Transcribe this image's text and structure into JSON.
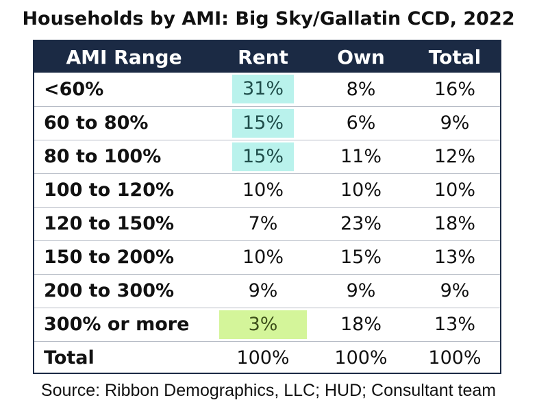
{
  "title": "Households by AMI:  Big Sky/Gallatin CCD, 2022",
  "source": "Source: Ribbon Demographics, LLC; HUD; Consultant team",
  "colors": {
    "header_bg": "#1b2a44",
    "highlight_teal": "#b9f2ec",
    "highlight_green": "#d4f59a"
  },
  "chart_data": {
    "type": "table",
    "columns": [
      "AMI Range",
      "Rent",
      "Own",
      "Total"
    ],
    "rows": [
      {
        "label": "<60%",
        "rent": "31%",
        "own": "8%",
        "total": "16%",
        "rent_highlight": "teal"
      },
      {
        "label": "60 to 80%",
        "rent": "15%",
        "own": "6%",
        "total": "9%",
        "rent_highlight": "teal"
      },
      {
        "label": "80 to 100%",
        "rent": "15%",
        "own": "11%",
        "total": "12%",
        "rent_highlight": "teal"
      },
      {
        "label": "100 to 120%",
        "rent": "10%",
        "own": "10%",
        "total": "10%",
        "rent_highlight": ""
      },
      {
        "label": "120 to 150%",
        "rent": "7%",
        "own": "23%",
        "total": "18%",
        "rent_highlight": ""
      },
      {
        "label": "150 to 200%",
        "rent": "10%",
        "own": "15%",
        "total": "13%",
        "rent_highlight": ""
      },
      {
        "label": "200 to 300%",
        "rent": "9%",
        "own": "9%",
        "total": "9%",
        "rent_highlight": ""
      },
      {
        "label": "300% or more",
        "rent": "3%",
        "own": "18%",
        "total": "13%",
        "rent_highlight": "green"
      }
    ],
    "total_row": {
      "label": "Total",
      "rent": "100%",
      "own": "100%",
      "total": "100%"
    }
  }
}
